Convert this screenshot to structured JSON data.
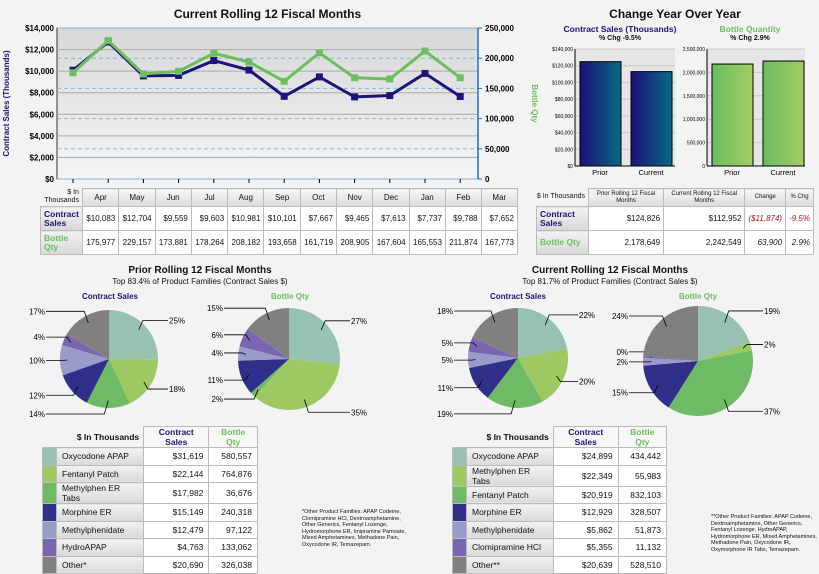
{
  "line_chart": {
    "title": "Current Rolling 12 Fiscal Months",
    "y_label": "Contract Sales (Thousands)",
    "y2_label": "Bottle Qty",
    "y_ticks": [
      "$0",
      "$2,000",
      "$4,000",
      "$6,000",
      "$8,000",
      "$10,000",
      "$12,000",
      "$14,000"
    ],
    "y2_ticks": [
      "0",
      "50,000",
      "100,000",
      "150,000",
      "200,000",
      "250,000"
    ],
    "ylim": [
      0,
      14000
    ],
    "y2lim": [
      0,
      250000
    ],
    "months": [
      "Apr",
      "May",
      "Jun",
      "Jul",
      "Aug",
      "Sep",
      "Oct",
      "Nov",
      "Dec",
      "Jan",
      "Feb",
      "Mar"
    ],
    "contract_sales": [
      10083,
      12704,
      9559,
      9603,
      10981,
      10101,
      7667,
      9465,
      7613,
      7737,
      9788,
      7652
    ],
    "bottle_qty": [
      175977,
      229157,
      173881,
      178264,
      208182,
      193658,
      161719,
      208905,
      167604,
      165553,
      211874,
      167773
    ],
    "colors": {
      "contract_sales": "#1c1476",
      "bottle_qty": "#6cbf5f"
    }
  },
  "monthly_table": {
    "header": "$ In Thousands",
    "row_labels": [
      "Contract Sales",
      "Bottle Qty"
    ],
    "contract_sales": [
      "$10,083",
      "$12,704",
      "$9,559",
      "$9,603",
      "$10,981",
      "$10,101",
      "$7,667",
      "$9,465",
      "$7,613",
      "$7,737",
      "$9,788",
      "$7,652"
    ],
    "bottle_qty": [
      "175,977",
      "229,157",
      "173,881",
      "178,264",
      "208,182",
      "193,658",
      "161,719",
      "208,905",
      "167,604",
      "165,553",
      "211,874",
      "167,773"
    ]
  },
  "yoy": {
    "title": "Change Year Over Year",
    "cs_chart": {
      "title": "Contract Sales (Thousands)",
      "subtitle": "% Chg -9.5%",
      "categories": [
        "Prior",
        "Current"
      ],
      "values": [
        124826,
        112952
      ],
      "ylim": [
        0,
        140000
      ],
      "ticks": [
        "$0",
        "$20,000",
        "$40,000",
        "$60,000",
        "$80,000",
        "$100,000",
        "$120,000",
        "$140,000"
      ]
    },
    "bq_chart": {
      "title": "Bottle Quantity",
      "subtitle": "% Chg 2.9%",
      "categories": [
        "Prior",
        "Current"
      ],
      "values": [
        2178649,
        2242549
      ],
      "ylim": [
        0,
        2500000
      ],
      "ticks": [
        "0",
        "500,000",
        "1,000,000",
        "1,500,000",
        "2,000,000",
        "2,500,000"
      ]
    },
    "table": {
      "headers": [
        "$ In Thousands",
        "Prior Rolling 12 Fiscal Months",
        "Current Rolling 12 Fiscal Months",
        "Change",
        "% Chg"
      ],
      "rows": [
        {
          "label": "Contract Sales",
          "prior": "$124,826",
          "current": "$112,952",
          "change": "($11,874)",
          "pct": "-9.5%"
        },
        {
          "label": "Bottle Qty",
          "prior": "2,178,649",
          "current": "2,242,549",
          "change": "63,900",
          "pct": "2.9%"
        }
      ]
    }
  },
  "slice_colors": [
    "#97c2b2",
    "#9dc862",
    "#6fbb65",
    "#30308a",
    "#9a9acb",
    "#7a66b0",
    "#808080"
  ],
  "prior": {
    "title": "Prior Rolling 12 Fiscal Months",
    "subtitle": "Top 83.4% of Product Families (Contract Sales $)",
    "pie_cs": {
      "title": "Contract Sales",
      "labels": [
        "25%",
        "18%",
        "14%",
        "12%",
        "10%",
        "4%",
        "17%"
      ]
    },
    "pie_bq": {
      "title": "Bottle Qty",
      "labels": [
        "27%",
        "35%",
        "2%",
        "11%",
        "4%",
        "6%",
        "15%"
      ]
    },
    "table": {
      "header": "$ In Thousands",
      "col_cs": "Contract Sales",
      "col_bq": "Bottle Qty",
      "rows": [
        {
          "name": "Oxycodone APAP",
          "cs": "$31,619",
          "bq": "580,557",
          "csv": 31619,
          "bqv": 580557
        },
        {
          "name": "Fentanyl Patch",
          "cs": "$22,144",
          "bq": "764,876",
          "csv": 22144,
          "bqv": 764876
        },
        {
          "name": "Methylphen ER Tabs",
          "cs": "$17,982",
          "bq": "36,676",
          "csv": 17982,
          "bqv": 36676
        },
        {
          "name": "Morphine ER",
          "cs": "$15,149",
          "bq": "240,318",
          "csv": 15149,
          "bqv": 240318
        },
        {
          "name": "Methylphenidate",
          "cs": "$12,479",
          "bq": "97,122",
          "csv": 12479,
          "bqv": 97122
        },
        {
          "name": "HydroAPAP",
          "cs": "$4,763",
          "bq": "133,062",
          "csv": 4763,
          "bqv": 133062
        },
        {
          "name": "Other*",
          "cs": "$20,690",
          "bq": "326,038",
          "csv": 20690,
          "bqv": 326038
        }
      ]
    },
    "note": "*Other Product Families: APAP Codeine, Clomipramine HCl, Dextroamphetamine, Other Generics, Fentanyl Lozenge, Hydromorphone ER, Imipramine Pamoate, Mixed Amphetamines, Methadone Pain, Oxycodone IR, Temazepam."
  },
  "current": {
    "title": "Current Rolling 12 Fiscal Months",
    "subtitle": "Top 81.7% of Product Families (Contract Sales $)",
    "pie_cs": {
      "title": "Contract Sales",
      "labels": [
        "22%",
        "20%",
        "19%",
        "11%",
        "5%",
        "5%",
        "18%"
      ]
    },
    "pie_bq": {
      "title": "Bottle Qty",
      "labels": [
        "19%",
        "2%",
        "37%",
        "15%",
        "2%",
        "0%",
        "24%"
      ]
    },
    "table": {
      "header": "$ In Thousands",
      "col_cs": "Contract Sales",
      "col_bq": "Bottle Qty",
      "rows": [
        {
          "name": "Oxycodone APAP",
          "cs": "$24,899",
          "bq": "434,442",
          "csv": 24899,
          "bqv": 434442
        },
        {
          "name": "Methylphen ER Tabs",
          "cs": "$22,349",
          "bq": "55,983",
          "csv": 22349,
          "bqv": 55983
        },
        {
          "name": "Fentanyl Patch",
          "cs": "$20,919",
          "bq": "832,103",
          "csv": 20919,
          "bqv": 832103
        },
        {
          "name": "Morphine ER",
          "cs": "$12,929",
          "bq": "328,507",
          "csv": 12929,
          "bqv": 328507
        },
        {
          "name": "Methylphenidate",
          "cs": "$5,862",
          "bq": "51,873",
          "csv": 5862,
          "bqv": 51873
        },
        {
          "name": "Clomipramine HCl",
          "cs": "$5,355",
          "bq": "11,132",
          "csv": 5355,
          "bqv": 11132
        },
        {
          "name": "Other**",
          "cs": "$20,639",
          "bq": "528,510",
          "csv": 20639,
          "bqv": 528510
        }
      ]
    },
    "note": "**Other Product Families: APAP Codeine, Dextroamphetamine, Other Generics, Fentanyl Lozenge, HydroAPAP, Hydromorphone ER, Mixed Amphetamines, Methadone Pain, Oxycodone IR, Oxymorphone IR Tabs, Temazepam."
  }
}
